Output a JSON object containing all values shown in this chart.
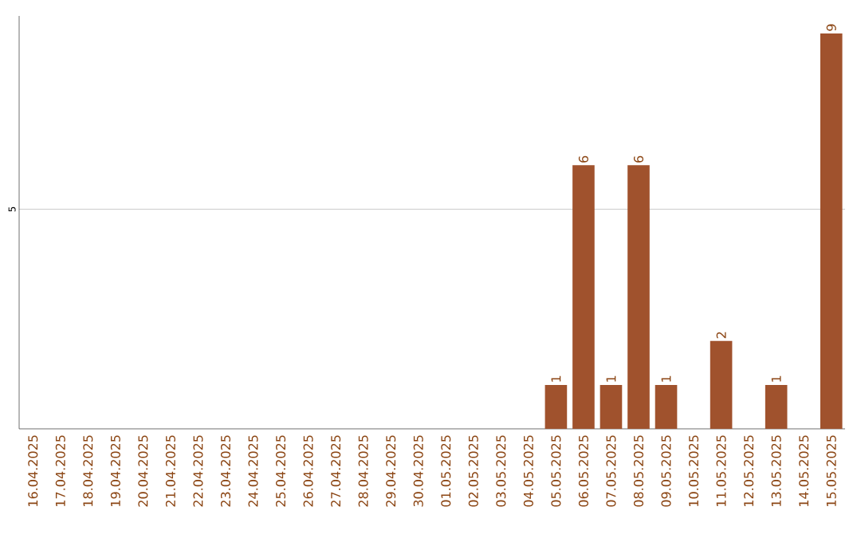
{
  "chart_data": {
    "type": "bar",
    "categories": [
      "16.04.2025",
      "17.04.2025",
      "18.04.2025",
      "19.04.2025",
      "20.04.2025",
      "21.04.2025",
      "22.04.2025",
      "23.04.2025",
      "24.04.2025",
      "25.04.2025",
      "26.04.2025",
      "27.04.2025",
      "28.04.2025",
      "29.04.2025",
      "30.04.2025",
      "01.05.2025",
      "02.05.2025",
      "03.05.2025",
      "04.05.2025",
      "05.05.2025",
      "06.05.2025",
      "07.05.2025",
      "08.05.2025",
      "09.05.2025",
      "10.05.2025",
      "11.05.2025",
      "12.05.2025",
      "13.05.2025",
      "14.05.2025",
      "15.05.2025"
    ],
    "values": [
      null,
      null,
      null,
      null,
      null,
      null,
      null,
      null,
      null,
      null,
      null,
      null,
      null,
      null,
      null,
      null,
      null,
      null,
      null,
      1,
      6,
      1,
      6,
      1,
      null,
      2,
      null,
      1,
      null,
      9
    ],
    "color": "#a0522d",
    "data_labels": true,
    "ylim": [
      0,
      9.4
    ],
    "yticks": [
      5
    ],
    "grid": "y"
  }
}
